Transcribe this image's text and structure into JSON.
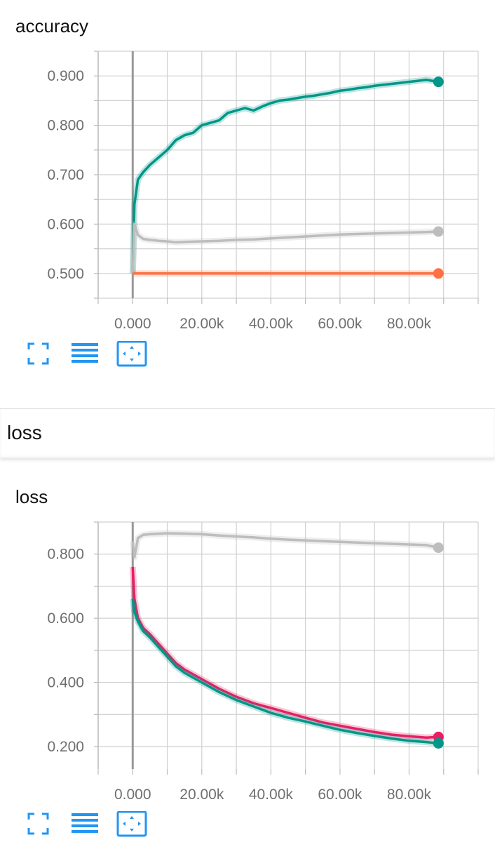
{
  "charts": [
    {
      "title": "accuracy",
      "chart_data": {
        "type": "line",
        "title": "accuracy",
        "xlabel": "",
        "ylabel": "",
        "xlim": [
          -10000,
          100000
        ],
        "ylim": [
          0.45,
          0.95
        ],
        "x_ticks": [
          "0.000",
          "20.00k",
          "40.00k",
          "60.00k",
          "80.00k"
        ],
        "x_tick_values": [
          0,
          20000,
          40000,
          60000,
          80000
        ],
        "y_ticks": [
          "0.500",
          "0.600",
          "0.700",
          "0.800",
          "0.900"
        ],
        "y_tick_values": [
          0.5,
          0.6,
          0.7,
          0.8,
          0.9
        ],
        "grid": true,
        "series": [
          {
            "color": "#009688",
            "x": [
              0,
              500,
              1500,
              3000,
              5000,
              7500,
              10000,
              12500,
              15000,
              17500,
              20000,
              22500,
              25000,
              27500,
              30000,
              32500,
              35000,
              37500,
              40000,
              42500,
              45000,
              47500,
              50000,
              52500,
              55000,
              57500,
              60000,
              62500,
              65000,
              67500,
              70000,
              72500,
              75000,
              77500,
              80000,
              82500,
              85000,
              88500
            ],
            "y": [
              0.5,
              0.64,
              0.69,
              0.705,
              0.72,
              0.735,
              0.75,
              0.77,
              0.78,
              0.785,
              0.8,
              0.805,
              0.81,
              0.825,
              0.83,
              0.835,
              0.83,
              0.838,
              0.845,
              0.85,
              0.852,
              0.855,
              0.858,
              0.86,
              0.863,
              0.866,
              0.87,
              0.872,
              0.875,
              0.877,
              0.88,
              0.882,
              0.884,
              0.886,
              0.888,
              0.89,
              0.892,
              0.888
            ]
          },
          {
            "color": "#bdbdbd",
            "x": [
              0,
              500,
              1500,
              3000,
              5000,
              7500,
              10000,
              12500,
              15000,
              20000,
              25000,
              30000,
              35000,
              40000,
              45000,
              50000,
              55000,
              60000,
              65000,
              70000,
              75000,
              80000,
              85000,
              88500
            ],
            "y": [
              0.5,
              0.6,
              0.578,
              0.57,
              0.568,
              0.566,
              0.565,
              0.563,
              0.564,
              0.565,
              0.566,
              0.568,
              0.569,
              0.571,
              0.573,
              0.575,
              0.577,
              0.579,
              0.58,
              0.581,
              0.582,
              0.583,
              0.584,
              0.585
            ]
          },
          {
            "color": "#ff7043",
            "x": [
              0,
              20000,
              40000,
              60000,
              80000,
              88500
            ],
            "y": [
              0.5,
              0.5,
              0.5,
              0.5,
              0.5,
              0.5
            ]
          }
        ]
      }
    },
    {
      "title": "loss",
      "chart_data": {
        "type": "line",
        "title": "loss",
        "xlabel": "",
        "ylabel": "",
        "xlim": [
          -10000,
          100000
        ],
        "ylim": [
          0.13,
          0.9
        ],
        "x_ticks": [
          "0.000",
          "20.00k",
          "40.00k",
          "60.00k",
          "80.00k"
        ],
        "x_tick_values": [
          0,
          20000,
          40000,
          60000,
          80000
        ],
        "y_ticks": [
          "0.200",
          "0.400",
          "0.600",
          "0.800"
        ],
        "y_tick_values": [
          0.2,
          0.4,
          0.6,
          0.8
        ],
        "grid": true,
        "series": [
          {
            "color": "#bdbdbd",
            "x": [
              0,
              500,
              1500,
              3000,
              5000,
              10000,
              15000,
              20000,
              25000,
              30000,
              35000,
              40000,
              45000,
              50000,
              55000,
              60000,
              65000,
              70000,
              75000,
              80000,
              85000,
              88500
            ],
            "y": [
              0.84,
              0.79,
              0.85,
              0.86,
              0.862,
              0.865,
              0.864,
              0.862,
              0.858,
              0.855,
              0.852,
              0.848,
              0.845,
              0.843,
              0.84,
              0.838,
              0.836,
              0.834,
              0.832,
              0.83,
              0.828,
              0.82
            ]
          },
          {
            "color": "#e91e63",
            "x": [
              0,
              500,
              1500,
              3000,
              5000,
              7500,
              10000,
              12500,
              15000,
              20000,
              25000,
              30000,
              35000,
              40000,
              45000,
              50000,
              55000,
              60000,
              65000,
              70000,
              75000,
              80000,
              85000,
              88500
            ],
            "y": [
              0.76,
              0.66,
              0.6,
              0.57,
              0.55,
              0.52,
              0.49,
              0.46,
              0.44,
              0.41,
              0.38,
              0.355,
              0.335,
              0.32,
              0.305,
              0.29,
              0.275,
              0.265,
              0.255,
              0.245,
              0.237,
              0.232,
              0.228,
              0.23
            ]
          },
          {
            "color": "#009688",
            "x": [
              0,
              500,
              1500,
              3000,
              5000,
              7500,
              10000,
              12500,
              15000,
              20000,
              25000,
              30000,
              35000,
              40000,
              45000,
              50000,
              55000,
              60000,
              65000,
              70000,
              75000,
              80000,
              85000,
              88500
            ],
            "y": [
              0.66,
              0.62,
              0.59,
              0.56,
              0.54,
              0.51,
              0.48,
              0.45,
              0.43,
              0.4,
              0.37,
              0.345,
              0.325,
              0.305,
              0.29,
              0.278,
              0.265,
              0.252,
              0.242,
              0.233,
              0.225,
              0.218,
              0.214,
              0.21
            ]
          }
        ]
      }
    }
  ],
  "section": {
    "label": "loss"
  },
  "toolbar": {
    "icons": [
      "fullscreen-icon",
      "list-icon",
      "fit-domain-icon"
    ],
    "accent": "#2196f3"
  }
}
